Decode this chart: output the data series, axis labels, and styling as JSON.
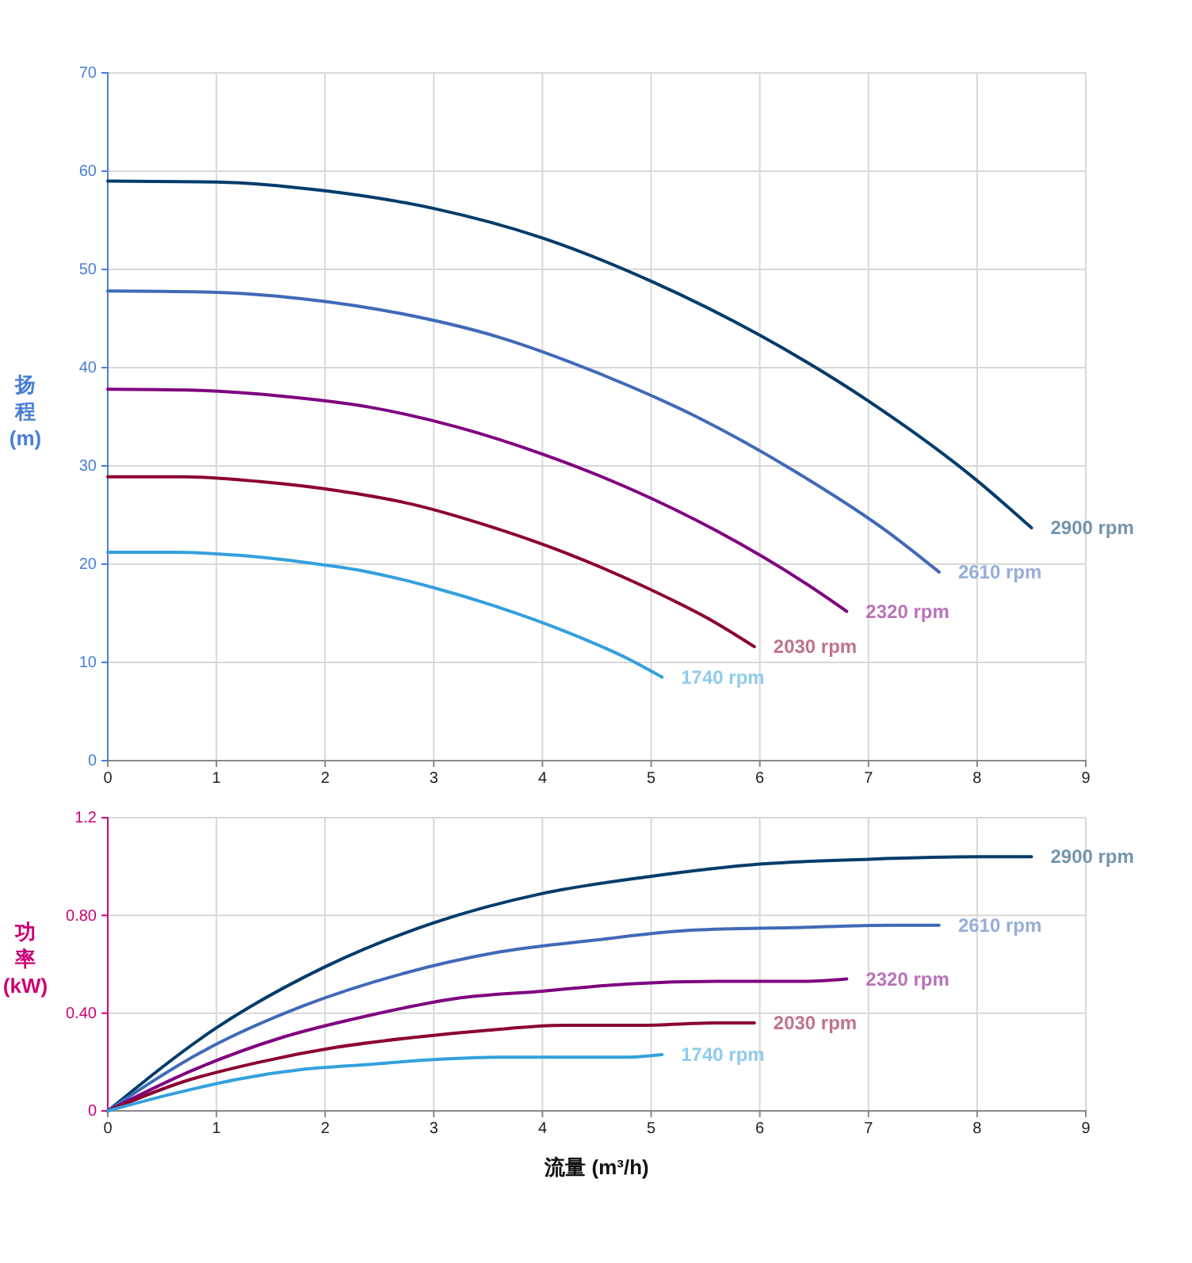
{
  "chart_data": [
    {
      "type": "line",
      "ylabel": "扬程 (m)",
      "xlim": [
        0,
        9
      ],
      "xticks": [
        0,
        1,
        2,
        3,
        4,
        5,
        6,
        7,
        8,
        9
      ],
      "ylim": [
        0,
        70
      ],
      "yticks": [
        0,
        10,
        20,
        30,
        40,
        50,
        60,
        70
      ],
      "grid": true,
      "series": [
        {
          "name": "2900 rpm",
          "color": "#033c6b",
          "x": [
            0,
            1,
            2,
            3,
            4,
            5,
            6,
            7,
            8,
            8.5
          ],
          "values": [
            59,
            58.9,
            58,
            56.2,
            53.2,
            48.8,
            43.3,
            36.6,
            28.5,
            23.7
          ]
        },
        {
          "name": "2610 rpm",
          "color": "#4169b8",
          "x": [
            0,
            0.9,
            1.8,
            2.7,
            3.6,
            4.5,
            5.4,
            6.3,
            7.2,
            7.65
          ],
          "values": [
            47.8,
            47.7,
            47,
            45.5,
            43.1,
            39.5,
            35.1,
            29.6,
            23.1,
            19.2
          ]
        },
        {
          "name": "2320 rpm",
          "color": "#800080",
          "x": [
            0,
            0.8,
            1.6,
            2.4,
            3.2,
            4,
            4.8,
            5.6,
            6.4,
            6.8
          ],
          "values": [
            37.8,
            37.7,
            37.1,
            36,
            34,
            31.2,
            27.7,
            23.4,
            18.2,
            15.2
          ]
        },
        {
          "name": "2030 rpm",
          "color": "#8b0030",
          "x": [
            0,
            0.7,
            1.4,
            2.1,
            2.8,
            3.5,
            4.2,
            4.9,
            5.6,
            5.95
          ],
          "values": [
            28.9,
            28.9,
            28.4,
            27.5,
            26.1,
            23.9,
            21.2,
            17.9,
            14,
            11.6
          ]
        },
        {
          "name": "1740 rpm",
          "color": "#34a0dc",
          "x": [
            0,
            0.6,
            1.2,
            1.8,
            2.4,
            3,
            3.6,
            4.2,
            4.8,
            5.1
          ],
          "values": [
            21.2,
            21.2,
            20.9,
            20.2,
            19.2,
            17.6,
            15.6,
            13.2,
            10.3,
            8.5
          ]
        }
      ]
    },
    {
      "type": "line",
      "xlabel": "流量 (m³/h)",
      "ylabel": "功率 (kW)",
      "xlim": [
        0,
        9
      ],
      "xticks": [
        0,
        1,
        2,
        3,
        4,
        5,
        6,
        7,
        8,
        9
      ],
      "ylim": [
        0,
        1.2
      ],
      "yticks": [
        0,
        {
          "value": 0.4,
          "label": "0.40"
        },
        {
          "value": 0.8,
          "label": "0.80"
        },
        1.2
      ],
      "grid": true,
      "series": [
        {
          "name": "2900 rpm",
          "color": "#033c6b",
          "x": [
            0,
            1,
            2,
            3,
            4,
            5,
            6,
            7,
            8,
            8.5
          ],
          "values": [
            0,
            0.34,
            0.59,
            0.77,
            0.89,
            0.96,
            1.01,
            1.03,
            1.04,
            1.04
          ]
        },
        {
          "name": "2610 rpm",
          "color": "#4169b8",
          "x": [
            0,
            0.9,
            1.8,
            2.7,
            3.6,
            4.5,
            5.4,
            6.3,
            7.2,
            7.65
          ],
          "values": [
            0,
            0.25,
            0.43,
            0.56,
            0.65,
            0.7,
            0.74,
            0.75,
            0.76,
            0.76
          ]
        },
        {
          "name": "2320 rpm",
          "color": "#800080",
          "x": [
            0,
            0.8,
            1.6,
            2.4,
            3.2,
            4,
            4.8,
            5.6,
            6.4,
            6.8
          ],
          "values": [
            0,
            0.17,
            0.3,
            0.39,
            0.46,
            0.49,
            0.52,
            0.53,
            0.53,
            0.54
          ]
        },
        {
          "name": "2030 rpm",
          "color": "#8b0030",
          "x": [
            0,
            0.7,
            1.4,
            2.1,
            2.8,
            3.5,
            4.2,
            4.9,
            5.6,
            5.95
          ],
          "values": [
            0,
            0.12,
            0.2,
            0.26,
            0.3,
            0.33,
            0.35,
            0.35,
            0.36,
            0.36
          ]
        },
        {
          "name": "1740 rpm",
          "color": "#34a0dc",
          "x": [
            0,
            0.6,
            1.2,
            1.8,
            2.4,
            3,
            3.6,
            4.2,
            4.8,
            5.1
          ],
          "values": [
            0,
            0.07,
            0.13,
            0.17,
            0.19,
            0.21,
            0.22,
            0.22,
            0.22,
            0.23
          ]
        }
      ]
    }
  ]
}
